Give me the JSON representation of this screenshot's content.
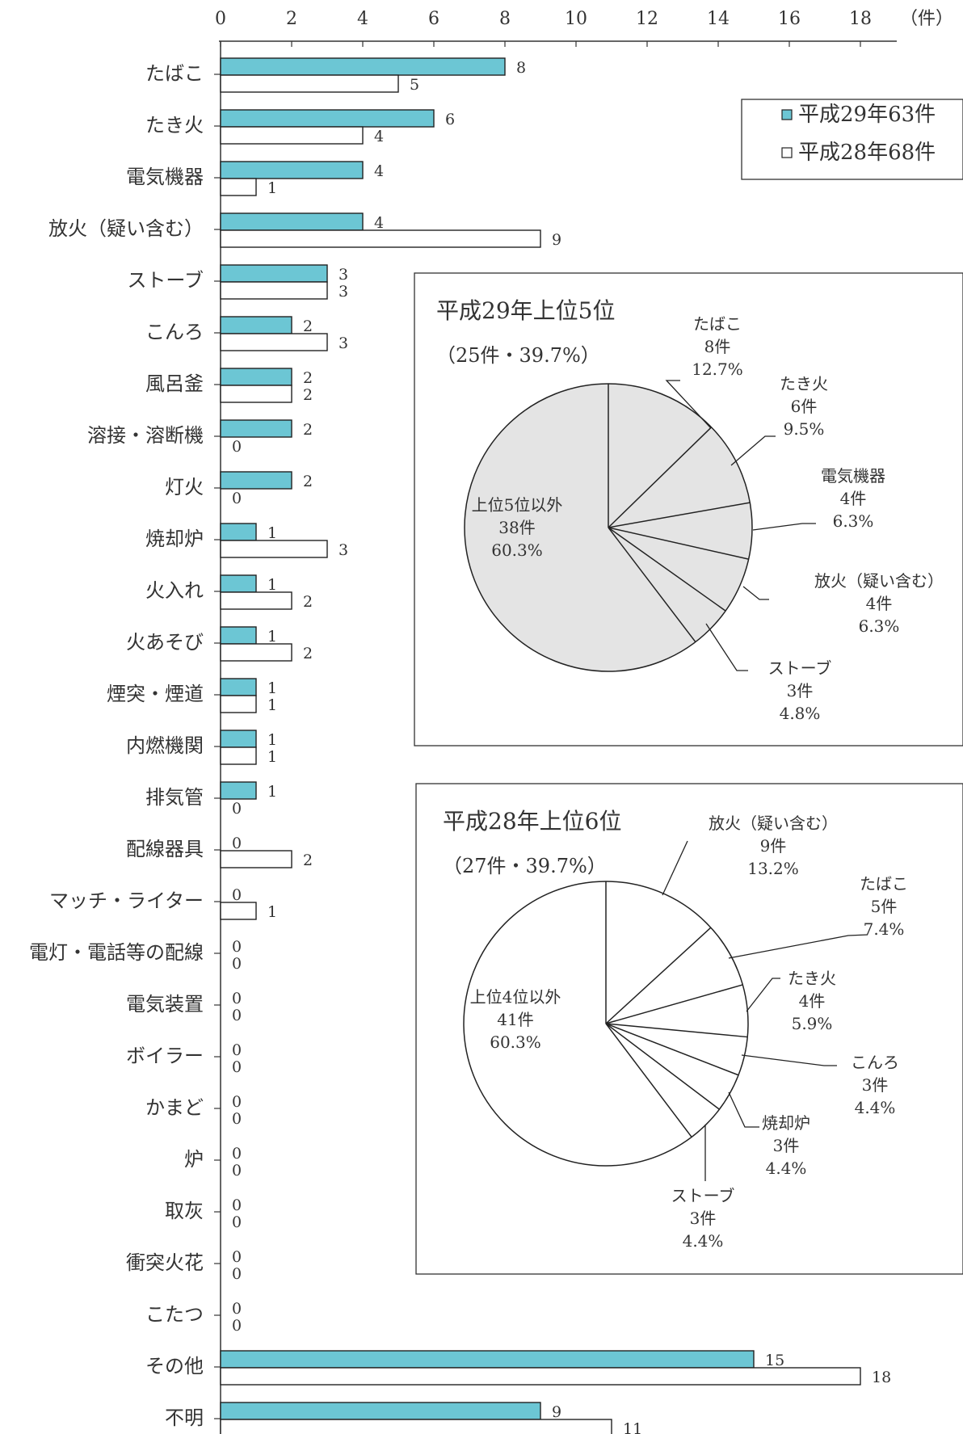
{
  "chart_data": [
    {
      "type": "bar",
      "orientation": "horizontal",
      "unit_label": "（件）",
      "xlim": [
        0,
        19
      ],
      "xticks": [
        0,
        2,
        4,
        6,
        8,
        10,
        12,
        14,
        16,
        18
      ],
      "grid": false,
      "legend_position": "top-right",
      "categories": [
        "たばこ",
        "たき火",
        "電気機器",
        "放火（疑い含む）",
        "ストーブ",
        "こんろ",
        "風呂釜",
        "溶接・溶断機",
        "灯火",
        "焼却炉",
        "火入れ",
        "火あそび",
        "煙突・煙道",
        "内燃機関",
        "排気管",
        "配線器具",
        "マッチ・ライター",
        "電灯・電話等の配線",
        "電気装置",
        "ボイラー",
        "かまど",
        "炉",
        "取灰",
        "衝突火花",
        "こたつ",
        "その他",
        "不明"
      ],
      "series": [
        {
          "name": "平成29年63件",
          "color": "#6cc6d4",
          "values": [
            8,
            6,
            4,
            4,
            3,
            2,
            2,
            2,
            2,
            1,
            1,
            1,
            1,
            1,
            1,
            0,
            0,
            0,
            0,
            0,
            0,
            0,
            0,
            0,
            0,
            15,
            9
          ]
        },
        {
          "name": "平成28年68件",
          "color": "#ffffff",
          "values": [
            5,
            4,
            1,
            9,
            3,
            3,
            2,
            0,
            0,
            3,
            2,
            2,
            1,
            1,
            0,
            2,
            1,
            0,
            0,
            0,
            0,
            0,
            0,
            0,
            0,
            18,
            11
          ]
        }
      ]
    },
    {
      "type": "pie",
      "title": "平成29年上位5位",
      "subtitle": "（25件・39.7%）",
      "fill": "#e4e4e4",
      "slices": [
        {
          "name": "たばこ",
          "count": "8件",
          "value": 12.7,
          "pct": "12.7%"
        },
        {
          "name": "たき火",
          "count": "6件",
          "value": 9.5,
          "pct": "9.5%"
        },
        {
          "name": "電気機器",
          "count": "4件",
          "value": 6.3,
          "pct": "6.3%"
        },
        {
          "name": "放火（疑い含む）",
          "count": "4件",
          "value": 6.3,
          "pct": "6.3%"
        },
        {
          "name": "ストーブ",
          "count": "3件",
          "value": 4.8,
          "pct": "4.8%"
        },
        {
          "name": "上位5位以外",
          "count": "38件",
          "value": 60.3,
          "pct": "60.3%"
        }
      ]
    },
    {
      "type": "pie",
      "title": "平成28年上位6位",
      "subtitle": "（27件・39.7%）",
      "fill": "#ffffff",
      "slices": [
        {
          "name": "放火（疑い含む）",
          "count": "9件",
          "value": 13.2,
          "pct": "13.2%"
        },
        {
          "name": "たばこ",
          "count": "5件",
          "value": 7.4,
          "pct": "7.4%"
        },
        {
          "name": "たき火",
          "count": "4件",
          "value": 5.9,
          "pct": "5.9%"
        },
        {
          "name": "こんろ",
          "count": "3件",
          "value": 4.4,
          "pct": "4.4%"
        },
        {
          "name": "焼却炉",
          "count": "3件",
          "value": 4.4,
          "pct": "4.4%"
        },
        {
          "name": "ストーブ",
          "count": "3件",
          "value": 4.4,
          "pct": "4.4%"
        },
        {
          "name": "上位4位以外",
          "count": "41件",
          "value": 60.3,
          "pct": "60.3%"
        }
      ]
    }
  ]
}
